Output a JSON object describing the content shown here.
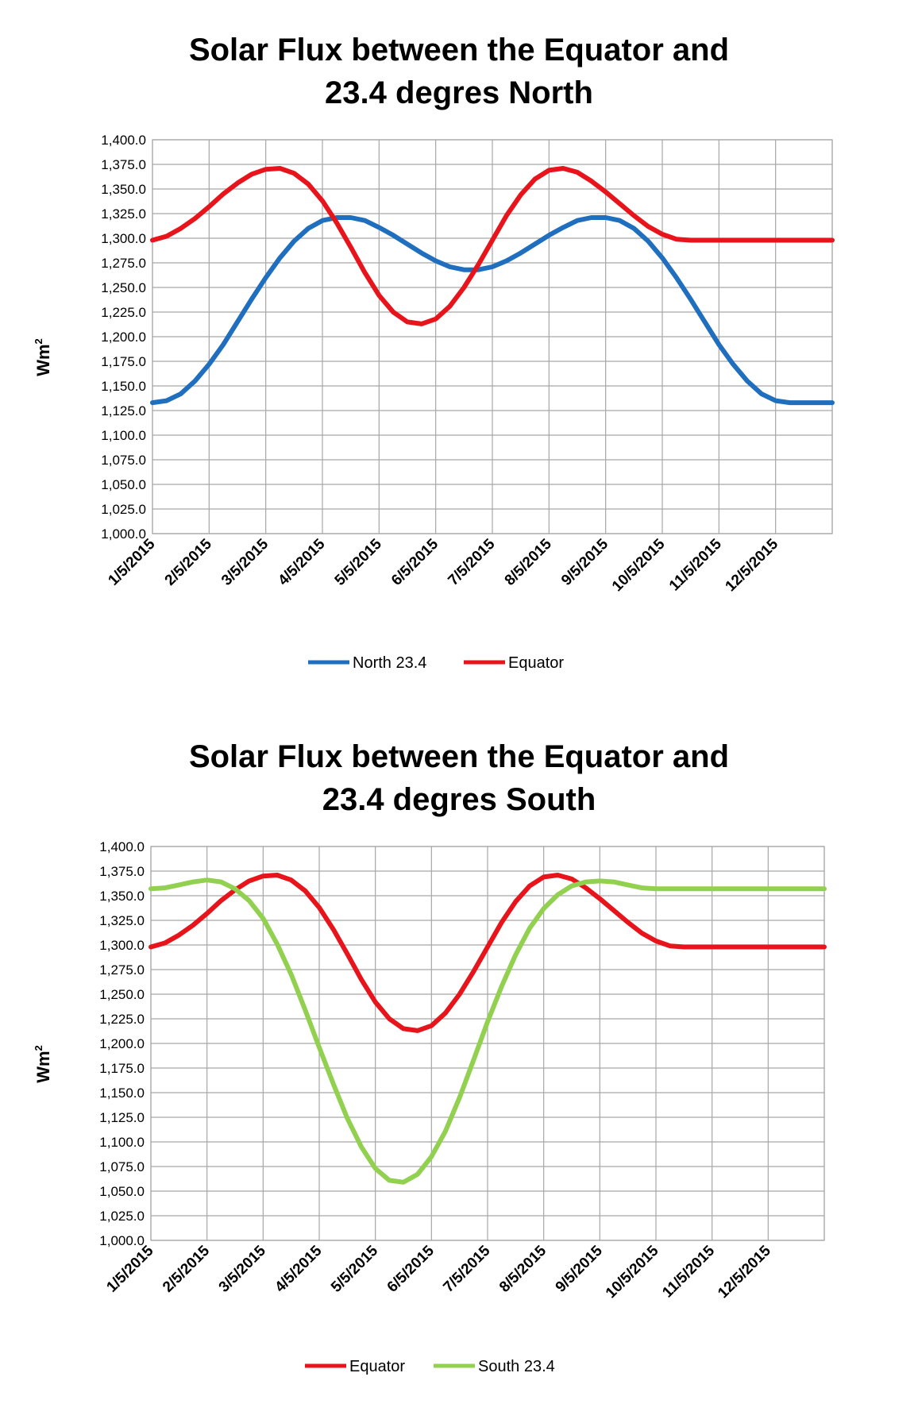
{
  "chart_data": [
    {
      "type": "line",
      "title_line1": "Solar Flux between the Equator and",
      "title_line2": "23.4 degres North",
      "ylabel": "Wm",
      "ylabel_sup": "2",
      "ylim": [
        1000,
        1400
      ],
      "ytick_step": 25,
      "categories": [
        "1/5/2015",
        "2/5/2015",
        "3/5/2015",
        "4/5/2015",
        "5/5/2015",
        "6/5/2015",
        "7/5/2015",
        "8/5/2015",
        "9/5/2015",
        "10/5/2015",
        "11/5/2015",
        "12/5/2015"
      ],
      "x_domain": [
        0,
        12
      ],
      "series": [
        {
          "name": "North 23.4",
          "color": "#1f6fbe",
          "x": [
            0,
            0.25,
            0.5,
            0.75,
            1,
            1.25,
            1.5,
            1.75,
            2,
            2.25,
            2.5,
            2.75,
            3,
            3.25,
            3.5,
            3.75,
            4,
            4.25,
            4.5,
            4.75,
            5,
            5.25,
            5.5,
            5.75,
            6,
            6.25,
            6.5,
            6.75,
            7,
            7.25,
            7.5,
            7.75,
            8,
            8.25,
            8.5,
            8.75,
            9,
            9.25,
            9.5,
            9.75,
            10,
            10.25,
            10.5,
            10.75,
            11,
            11.25,
            11.5,
            11.75,
            12
          ],
          "values": [
            1133,
            1135,
            1142,
            1155,
            1172,
            1192,
            1215,
            1238,
            1260,
            1280,
            1297,
            1310,
            1318,
            1321,
            1321,
            1318,
            1311,
            1303,
            1294,
            1285,
            1277,
            1271,
            1268,
            1268,
            1271,
            1277,
            1285,
            1294,
            1303,
            1311,
            1318,
            1321,
            1321,
            1318,
            1310,
            1297,
            1280,
            1260,
            1238,
            1215,
            1192,
            1172,
            1155,
            1142,
            1135,
            1133,
            1133,
            1133,
            1133
          ]
        },
        {
          "name": "Equator",
          "color": "#e8141b",
          "x": [
            0,
            0.25,
            0.5,
            0.75,
            1,
            1.25,
            1.5,
            1.75,
            2,
            2.25,
            2.5,
            2.75,
            3,
            3.25,
            3.5,
            3.75,
            4,
            4.25,
            4.5,
            4.75,
            5,
            5.25,
            5.5,
            5.75,
            6,
            6.25,
            6.5,
            6.75,
            7,
            7.25,
            7.5,
            7.75,
            8,
            8.25,
            8.5,
            8.75,
            9,
            9.25,
            9.5,
            9.75,
            10,
            10.25,
            10.5,
            10.75,
            11,
            11.25,
            11.5,
            11.75,
            12
          ],
          "values": [
            1298,
            1302,
            1310,
            1320,
            1332,
            1345,
            1356,
            1365,
            1370,
            1371,
            1366,
            1355,
            1338,
            1316,
            1291,
            1265,
            1242,
            1225,
            1215,
            1213,
            1218,
            1231,
            1250,
            1273,
            1298,
            1323,
            1344,
            1360,
            1369,
            1371,
            1367,
            1358,
            1347,
            1335,
            1323,
            1312,
            1304,
            1299,
            1298,
            1298,
            1298,
            1298,
            1298,
            1298,
            1298,
            1298,
            1298,
            1298,
            1298
          ]
        }
      ],
      "legend": [
        "North 23.4",
        "Equator"
      ]
    },
    {
      "type": "line",
      "title_line1": "Solar Flux between the Equator and",
      "title_line2": "23.4 degres South",
      "ylabel": "Wm",
      "ylabel_sup": "2",
      "ylim": [
        1000,
        1400
      ],
      "ytick_step": 25,
      "categories": [
        "1/5/2015",
        "2/5/2015",
        "3/5/2015",
        "4/5/2015",
        "5/5/2015",
        "6/5/2015",
        "7/5/2015",
        "8/5/2015",
        "9/5/2015",
        "10/5/2015",
        "11/5/2015",
        "12/5/2015"
      ],
      "x_domain": [
        0,
        12
      ],
      "series": [
        {
          "name": "Equator",
          "color": "#e8141b",
          "x": [
            0,
            0.25,
            0.5,
            0.75,
            1,
            1.25,
            1.5,
            1.75,
            2,
            2.25,
            2.5,
            2.75,
            3,
            3.25,
            3.5,
            3.75,
            4,
            4.25,
            4.5,
            4.75,
            5,
            5.25,
            5.5,
            5.75,
            6,
            6.25,
            6.5,
            6.75,
            7,
            7.25,
            7.5,
            7.75,
            8,
            8.25,
            8.5,
            8.75,
            9,
            9.25,
            9.5,
            9.75,
            10,
            10.25,
            10.5,
            10.75,
            11,
            11.25,
            11.5,
            11.75,
            12
          ],
          "values": [
            1298,
            1302,
            1310,
            1320,
            1332,
            1345,
            1356,
            1365,
            1370,
            1371,
            1366,
            1355,
            1338,
            1316,
            1291,
            1265,
            1242,
            1225,
            1215,
            1213,
            1218,
            1231,
            1250,
            1273,
            1298,
            1323,
            1344,
            1360,
            1369,
            1371,
            1367,
            1358,
            1347,
            1335,
            1323,
            1312,
            1304,
            1299,
            1298,
            1298,
            1298,
            1298,
            1298,
            1298,
            1298,
            1298,
            1298,
            1298,
            1298
          ]
        },
        {
          "name": "South 23.4",
          "color": "#92d050",
          "x": [
            0,
            0.25,
            0.5,
            0.75,
            1,
            1.25,
            1.5,
            1.75,
            2,
            2.25,
            2.5,
            2.75,
            3,
            3.25,
            3.5,
            3.75,
            4,
            4.25,
            4.5,
            4.75,
            5,
            5.25,
            5.5,
            5.75,
            6,
            6.25,
            6.5,
            6.75,
            7,
            7.25,
            7.5,
            7.75,
            8,
            8.25,
            8.5,
            8.75,
            9,
            9.25,
            9.5,
            9.75,
            10,
            10.25,
            10.5,
            10.75,
            11,
            11.25,
            11.5,
            11.75,
            12
          ],
          "values": [
            1357,
            1358,
            1361,
            1364,
            1366,
            1364,
            1357,
            1345,
            1327,
            1301,
            1270,
            1234,
            1196,
            1159,
            1124,
            1095,
            1073,
            1061,
            1059,
            1067,
            1085,
            1111,
            1145,
            1183,
            1222,
            1258,
            1290,
            1317,
            1337,
            1351,
            1360,
            1364,
            1365,
            1364,
            1361,
            1358,
            1357,
            1357,
            1357,
            1357,
            1357,
            1357,
            1357,
            1357,
            1357,
            1357,
            1357,
            1357,
            1357
          ]
        }
      ],
      "legend": [
        "Equator",
        "South 23.4"
      ]
    }
  ]
}
